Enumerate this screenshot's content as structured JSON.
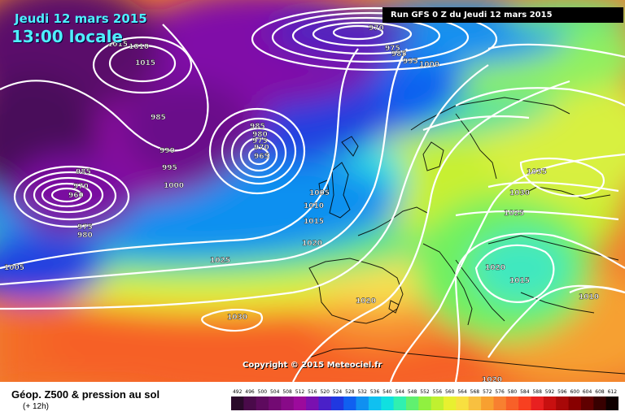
{
  "header": {
    "date": "Jeudi 12 mars 2015",
    "time": "13:00 locale",
    "run": "Run GFS 0 Z du Jeudi 12 mars 2015"
  },
  "copyright": "Copyright © 2015 Meteociel.fr",
  "footer": {
    "title": "Géop. Z500 & pression au sol",
    "subtitle": "(+ 12h)"
  },
  "legend": {
    "values": [
      "492",
      "496",
      "500",
      "504",
      "508",
      "512",
      "516",
      "520",
      "524",
      "528",
      "532",
      "536",
      "540",
      "544",
      "548",
      "552",
      "556",
      "560",
      "564",
      "568",
      "572",
      "576",
      "580",
      "584",
      "588",
      "592",
      "596",
      "600",
      "604",
      "608",
      "612"
    ],
    "colors": [
      "#2a0a2a",
      "#4a0a4a",
      "#5e0a5e",
      "#730a73",
      "#880a88",
      "#9c0a9c",
      "#7a10b0",
      "#4a20c8",
      "#2038e0",
      "#1060f0",
      "#1090f0",
      "#10c0f0",
      "#10e0e0",
      "#30f0b0",
      "#60f070",
      "#90f040",
      "#c0f030",
      "#e8f030",
      "#f8e040",
      "#f8c040",
      "#f8a030",
      "#f88030",
      "#f86028",
      "#f84020",
      "#e82020",
      "#c81010",
      "#a80808",
      "#880000",
      "#600000",
      "#380000",
      "#100000"
    ]
  },
  "pressure_labels": [
    "1010",
    "1015",
    "1015",
    "970",
    "975",
    "985",
    "995",
    "1000",
    "985",
    "990",
    "995",
    "1000",
    "985",
    "970",
    "960",
    "975",
    "980",
    "985",
    "980",
    "975",
    "970",
    "965",
    "1005",
    "1010",
    "1015",
    "1020",
    "1025",
    "1030",
    "1020",
    "1035",
    "1030",
    "1025",
    "1020",
    "1015",
    "1010",
    "1020",
    "1005"
  ]
}
